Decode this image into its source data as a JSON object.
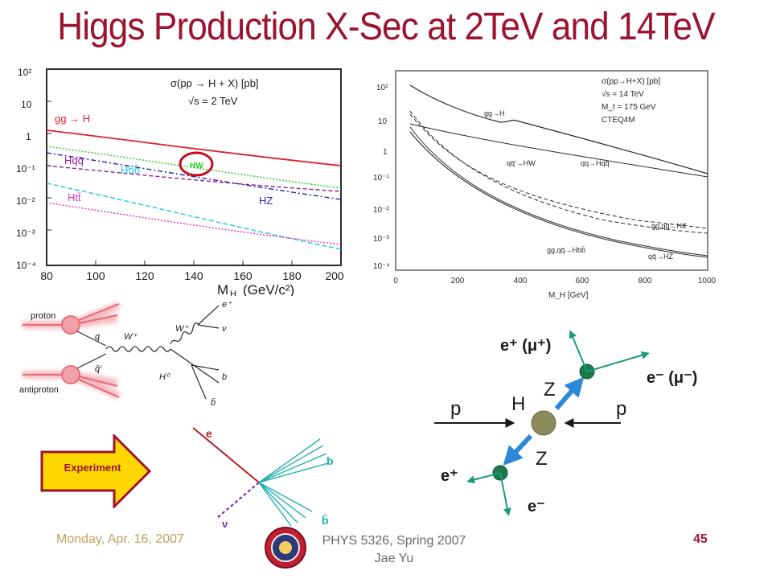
{
  "slide": {
    "title": "Higgs Production X-Sec at 2TeV and 14TeV",
    "footer_date": "Monday, Apr. 16, 2007",
    "footer_course": "PHYS 5326, Spring 2007",
    "footer_author": "Jae Yu",
    "page_number": "45"
  },
  "plot_2tev": {
    "legend_line1": "σ(pp → H + X) [pb]",
    "legend_line2": "√s = 2 TeV",
    "xlabel": "M",
    "xlabel_sub": "H",
    "xlabel_unit": "(GeV/c²)",
    "xticks": [
      "80",
      "100",
      "120",
      "140",
      "160",
      "180",
      "200"
    ],
    "yticks": [
      "10²",
      "10",
      "1",
      "10⁻¹",
      "10⁻²",
      "10⁻³",
      "10⁻⁴"
    ],
    "labels": {
      "gg": "gg → H",
      "hw": "HW",
      "hqq": "Hqq̄",
      "hbb": "Hbb̄",
      "hz": "HZ",
      "htt": "Htt̄"
    },
    "colors": {
      "gg": "#e0202a",
      "hw": "#22cc22",
      "hqq": "#9a1a9a",
      "hbb": "#20c8d8",
      "hz": "#1a2aa0",
      "htt": "#e030c0",
      "circle": "#c01020"
    }
  },
  "plot_14tev": {
    "legend": [
      "σ(pp→H+X) [pb]",
      "√s = 14 TeV",
      "M_t = 175 GeV",
      "CTEQ4M"
    ],
    "xlabel": "M_H [GeV]",
    "xticks": [
      "0",
      "200",
      "400",
      "600",
      "800",
      "1000"
    ],
    "yticks": [
      "10²",
      "10",
      "1",
      "10⁻¹",
      "10⁻²",
      "10⁻³",
      "10⁻⁴"
    ],
    "labels": {
      "gg": "gg→H",
      "hw": "qq̄'→HW",
      "hqq": "qq→Hqq̄",
      "htt": "gg,qq̄→Htt̄",
      "hbb": "gg,qq̄→Hbb̄",
      "hz": "qq̄→HZ"
    }
  },
  "feynman": {
    "proton": "proton",
    "antiproton": "antiproton",
    "q": "q",
    "qbar": "q̄'",
    "w1": "W⁺",
    "w2": "W⁺",
    "h": "H⁰",
    "eplus": "e⁺",
    "nu": "ν",
    "b": "b",
    "bbar": "b̄",
    "colors": {
      "proton": "#e8707a",
      "glow": "#f5b0b8"
    }
  },
  "decay": {
    "p_left": "p",
    "p_right": "p",
    "h": "H",
    "z_top": "Z",
    "z_bottom": "Z",
    "top_lepton": "e⁺ (μ⁺)",
    "top_right_lepton": "e⁻ (μ⁻)",
    "bottom_eplus": "e⁺",
    "bottom_eminus": "e⁻",
    "colors": {
      "z_arrow": "#2a8ad8",
      "lepton": "#1a9a7a",
      "node": "#1a7a4a",
      "higgs": "#8a8a5a"
    }
  },
  "experiment": {
    "label": "Experiment",
    "e": "e",
    "nu": "ν",
    "b": "b",
    "bbar": "b̄",
    "colors": {
      "arrow_fill": "#ffd700",
      "arrow_stroke": "#9b1530",
      "e_track": "#b02020",
      "nu_track": "#6a2aa0",
      "jets": "#20b0b0"
    }
  }
}
